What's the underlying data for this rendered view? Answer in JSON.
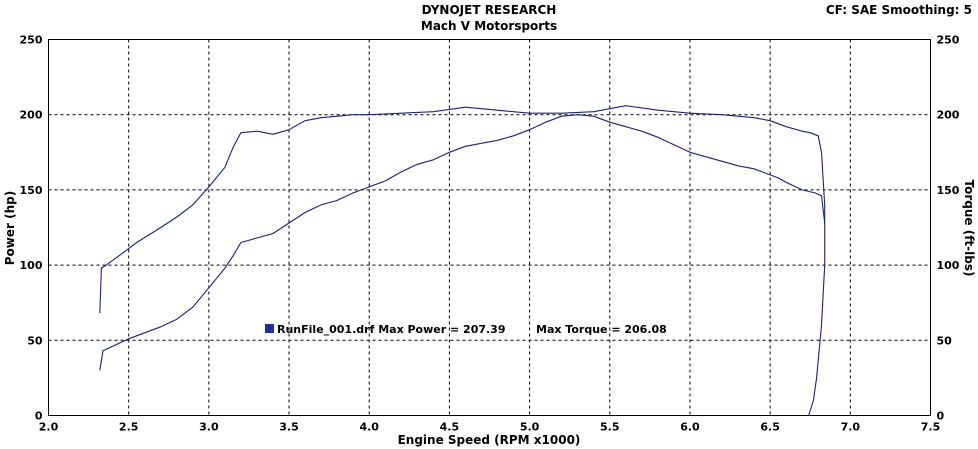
{
  "header": {
    "title": "DYNOJET RESEARCH",
    "subtitle": "Mach V Motorsports",
    "cf_info": "CF: SAE  Smoothing: 5"
  },
  "colors": {
    "series": "#1a237e",
    "legend_swatch": "#1f2f9c"
  },
  "legend": {
    "run_label": "RunFile_001.drf Max Power = 207.39",
    "torque_label": "Max Torque = 206.08"
  },
  "chart_data": {
    "type": "line",
    "xlabel": "Engine Speed (RPM x1000)",
    "ylabel_left": "Power (hp)",
    "ylabel_right": "Torque (ft-lbs)",
    "xlim": [
      2.0,
      7.5
    ],
    "ylim_left": [
      0,
      250
    ],
    "ylim_right": [
      0,
      250
    ],
    "grid": true,
    "xticks": [
      "2.0",
      "2.5",
      "3.0",
      "3.5",
      "4.0",
      "4.5",
      "5.0",
      "5.5",
      "6.0",
      "6.5",
      "7.0",
      "7.5"
    ],
    "yticks": [
      "0",
      "50",
      "100",
      "150",
      "200",
      "250"
    ],
    "series": [
      {
        "points": [
          [
            2.32,
            30
          ],
          [
            2.34,
            43
          ],
          [
            2.4,
            46
          ],
          [
            2.5,
            51
          ],
          [
            2.6,
            55
          ],
          [
            2.7,
            59
          ],
          [
            2.8,
            64
          ],
          [
            2.9,
            72
          ],
          [
            3.0,
            85
          ],
          [
            3.1,
            98
          ],
          [
            3.15,
            106
          ],
          [
            3.2,
            115
          ],
          [
            3.3,
            118
          ],
          [
            3.4,
            121
          ],
          [
            3.5,
            128
          ],
          [
            3.6,
            135
          ],
          [
            3.7,
            140
          ],
          [
            3.8,
            143
          ],
          [
            3.9,
            148
          ],
          [
            4.0,
            152
          ],
          [
            4.1,
            156
          ],
          [
            4.2,
            162
          ],
          [
            4.3,
            167
          ],
          [
            4.4,
            170
          ],
          [
            4.5,
            175
          ],
          [
            4.6,
            179
          ],
          [
            4.7,
            181
          ],
          [
            4.8,
            183
          ],
          [
            4.9,
            186
          ],
          [
            5.0,
            190
          ],
          [
            5.1,
            195
          ],
          [
            5.2,
            199
          ],
          [
            5.3,
            200
          ],
          [
            5.4,
            199
          ],
          [
            5.5,
            195
          ],
          [
            5.6,
            192
          ],
          [
            5.7,
            189
          ],
          [
            5.8,
            185
          ],
          [
            5.9,
            180
          ],
          [
            6.0,
            175
          ],
          [
            6.1,
            172
          ],
          [
            6.2,
            169
          ],
          [
            6.3,
            166
          ],
          [
            6.4,
            164
          ],
          [
            6.5,
            160
          ],
          [
            6.55,
            158
          ],
          [
            6.6,
            155
          ],
          [
            6.7,
            150
          ],
          [
            6.78,
            148
          ],
          [
            6.82,
            146
          ],
          [
            6.84,
            128
          ]
        ]
      },
      {
        "points": [
          [
            2.32,
            68
          ],
          [
            2.33,
            98
          ],
          [
            2.36,
            100
          ],
          [
            2.45,
            107
          ],
          [
            2.55,
            115
          ],
          [
            2.7,
            125
          ],
          [
            2.8,
            132
          ],
          [
            2.9,
            140
          ],
          [
            3.0,
            152
          ],
          [
            3.1,
            165
          ],
          [
            3.15,
            178
          ],
          [
            3.2,
            188
          ],
          [
            3.3,
            189
          ],
          [
            3.4,
            187
          ],
          [
            3.5,
            190
          ],
          [
            3.6,
            196
          ],
          [
            3.7,
            198
          ],
          [
            3.8,
            199
          ],
          [
            3.9,
            200
          ],
          [
            4.0,
            200
          ],
          [
            4.2,
            201
          ],
          [
            4.4,
            202
          ],
          [
            4.6,
            205
          ],
          [
            4.8,
            203
          ],
          [
            5.0,
            201
          ],
          [
            5.2,
            201
          ],
          [
            5.4,
            202
          ],
          [
            5.6,
            206
          ],
          [
            5.8,
            203
          ],
          [
            6.0,
            201
          ],
          [
            6.2,
            200
          ],
          [
            6.4,
            198
          ],
          [
            6.5,
            196
          ],
          [
            6.6,
            192
          ],
          [
            6.7,
            189
          ],
          [
            6.75,
            188
          ],
          [
            6.8,
            186
          ],
          [
            6.82,
            175
          ],
          [
            6.84,
            140
          ],
          [
            6.84,
            100
          ],
          [
            6.82,
            60
          ],
          [
            6.79,
            25
          ],
          [
            6.77,
            10
          ],
          [
            6.74,
            0
          ]
        ]
      }
    ]
  }
}
